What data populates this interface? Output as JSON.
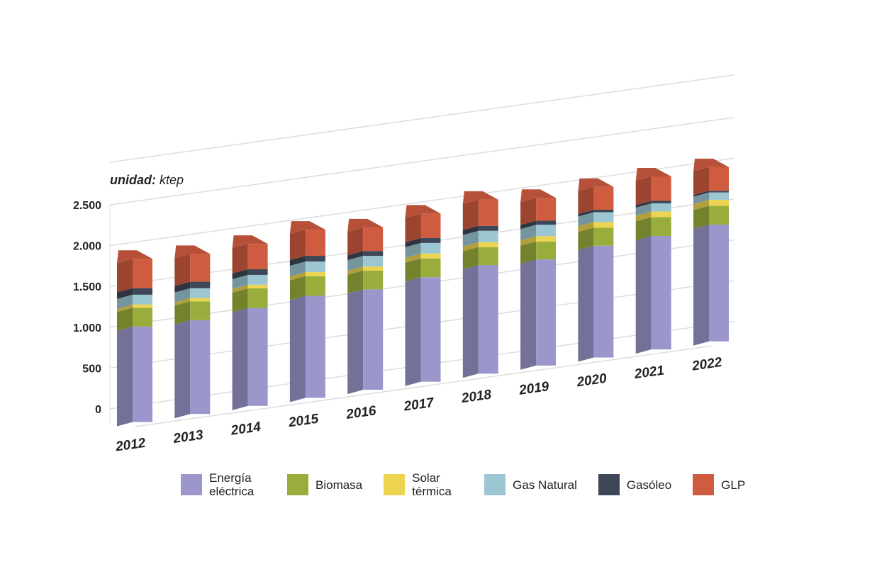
{
  "chart_data": {
    "type": "bar3d_stacked",
    "unit_label": "unidad:",
    "unit": "ktep",
    "categories": [
      "2012",
      "2013",
      "2014",
      "2015",
      "2016",
      "2017",
      "2018",
      "2019",
      "2020",
      "2021",
      "2022"
    ],
    "series": [
      {
        "name": "Energía eléctrica",
        "color": "#9b97cc",
        "values": [
          1170,
          1150,
          1200,
          1250,
          1230,
          1280,
          1330,
          1300,
          1370,
          1390,
          1430
        ]
      },
      {
        "name": "Biomasa",
        "color": "#98ad3c",
        "values": [
          230,
          230,
          240,
          240,
          230,
          230,
          220,
          220,
          220,
          230,
          230
        ]
      },
      {
        "name": "Solar térmica",
        "color": "#ecd350",
        "values": [
          40,
          40,
          45,
          50,
          50,
          60,
          60,
          65,
          70,
          70,
          75
        ]
      },
      {
        "name": "Gas Natural",
        "color": "#9cc7d2",
        "values": [
          120,
          120,
          120,
          130,
          130,
          130,
          140,
          140,
          120,
          100,
          90
        ]
      },
      {
        "name": "Gasóleo",
        "color": "#3d4757",
        "values": [
          80,
          80,
          70,
          70,
          60,
          60,
          60,
          50,
          30,
          30,
          20
        ]
      },
      {
        "name": "GLP",
        "color": "#cf5b40",
        "values": [
          360,
          340,
          310,
          320,
          290,
          300,
          320,
          280,
          280,
          300,
          290
        ]
      }
    ],
    "ylim": [
      0,
      2500
    ],
    "yticks": [
      0,
      500,
      {
        "value": 1000,
        "label": "1.000"
      },
      {
        "value": 1500,
        "label": "1.500"
      },
      {
        "value": 2000,
        "label": "2.000"
      },
      {
        "value": 2500,
        "label": "2.500"
      }
    ],
    "grid": true
  }
}
